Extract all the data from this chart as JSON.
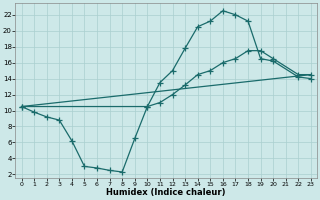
{
  "xlabel": "Humidex (Indice chaleur)",
  "bg_color": "#cde8e8",
  "grid_color": "#aacfcf",
  "line_color": "#1a6b6b",
  "xlim": [
    -0.5,
    23.5
  ],
  "ylim": [
    1.5,
    23.5
  ],
  "xticks": [
    0,
    1,
    2,
    3,
    4,
    5,
    6,
    7,
    8,
    9,
    10,
    11,
    12,
    13,
    14,
    15,
    16,
    17,
    18,
    19,
    20,
    21,
    22,
    23
  ],
  "yticks": [
    2,
    4,
    6,
    8,
    10,
    12,
    14,
    16,
    18,
    20,
    22
  ],
  "s1x": [
    0,
    1,
    2,
    3,
    4,
    5,
    6,
    7,
    8,
    9,
    10,
    11,
    12,
    13,
    14,
    15,
    16,
    17,
    18,
    19,
    20,
    22,
    23
  ],
  "s1y": [
    10.5,
    9.8,
    9.2,
    8.8,
    6.2,
    3.0,
    2.8,
    2.5,
    2.3,
    6.5,
    10.5,
    13.5,
    15.0,
    17.8,
    20.5,
    21.2,
    22.5,
    22.0,
    21.2,
    16.5,
    16.2,
    14.2,
    14.0
  ],
  "s2x": [
    0,
    10,
    11,
    12,
    13,
    14,
    15,
    16,
    17,
    18,
    19,
    20,
    22,
    23
  ],
  "s2y": [
    10.5,
    10.5,
    11.0,
    12.0,
    13.2,
    14.5,
    15.0,
    16.0,
    16.5,
    17.5,
    17.5,
    16.5,
    14.5,
    14.5
  ],
  "s3x": [
    0,
    23
  ],
  "s3y": [
    10.5,
    14.5
  ]
}
